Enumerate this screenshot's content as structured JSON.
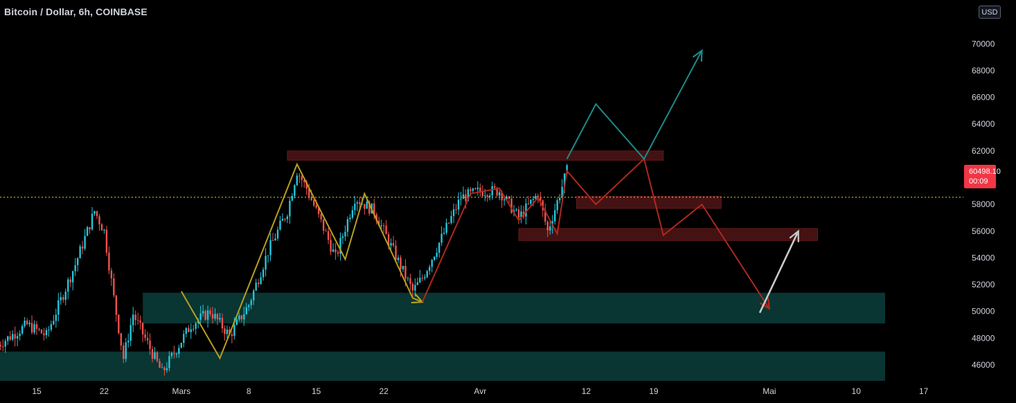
{
  "header": {
    "title": "Bitcoin / Dollar, 6h, COINBASE",
    "currency_button": "USD"
  },
  "price_label": {
    "value": "60498.10",
    "countdown": "00:09"
  },
  "colors": {
    "background": "#000000",
    "up_candle": "#26c6da",
    "down_candle": "#ef5350",
    "support_zone": "#0a3a36",
    "resistance_zone": "#4a1414",
    "yellow_line": "#b8a020",
    "red_projection": "#b0281e",
    "teal_projection": "#1d8a8a",
    "white_arrow": "#c9c9c9",
    "price_line": "#f5d142",
    "price_tag": "#f23645"
  },
  "chart_data": {
    "type": "candlestick",
    "symbol": "Bitcoin / Dollar",
    "interval": "6h",
    "exchange": "COINBASE",
    "ylim": [
      44800,
      72600
    ],
    "y_ticks": [
      46000,
      48000,
      50000,
      52000,
      54000,
      56000,
      58000,
      60000,
      62000,
      64000,
      66000,
      68000,
      70000
    ],
    "x_ticks": [
      "15",
      "22",
      "Mars",
      "8",
      "15",
      "22",
      "Avr",
      "12",
      "19",
      "Mai",
      "10",
      "17"
    ],
    "last_price": 60498.1,
    "price_path": [
      {
        "date": "Feb 11",
        "price": 47500
      },
      {
        "date": "Feb 14",
        "price": 49000
      },
      {
        "date": "Feb 16",
        "price": 48200
      },
      {
        "date": "Feb 19",
        "price": 53500
      },
      {
        "date": "Feb 21",
        "price": 57500
      },
      {
        "date": "Feb 22",
        "price": 56000
      },
      {
        "date": "Feb 23",
        "price": 51000
      },
      {
        "date": "Feb 24",
        "price": 46500
      },
      {
        "date": "Feb 25",
        "price": 49800
      },
      {
        "date": "Feb 28",
        "price": 45400
      },
      {
        "date": "Mar 2",
        "price": 49000
      },
      {
        "date": "Mar 4",
        "price": 50000
      },
      {
        "date": "Mar 6",
        "price": 48200
      },
      {
        "date": "Mar 8",
        "price": 50500
      },
      {
        "date": "Mar 10",
        "price": 54500
      },
      {
        "date": "Mar 12",
        "price": 57500
      },
      {
        "date": "Mar 13",
        "price": 60500
      },
      {
        "date": "Mar 14",
        "price": 59200
      },
      {
        "date": "Mar 16",
        "price": 55800
      },
      {
        "date": "Mar 17",
        "price": 54000
      },
      {
        "date": "Mar 19",
        "price": 58500
      },
      {
        "date": "Mar 21",
        "price": 57500
      },
      {
        "date": "Mar 23",
        "price": 54500
      },
      {
        "date": "Mar 25",
        "price": 51500
      },
      {
        "date": "Mar 26",
        "price": 52500
      },
      {
        "date": "Mar 28",
        "price": 55500
      },
      {
        "date": "Mar 30",
        "price": 58500
      },
      {
        "date": "Apr 1",
        "price": 59000
      },
      {
        "date": "Apr 3",
        "price": 59000
      },
      {
        "date": "Apr 5",
        "price": 57000
      },
      {
        "date": "Apr 7",
        "price": 58800
      },
      {
        "date": "Apr 8",
        "price": 56000
      },
      {
        "date": "Apr 9",
        "price": 58200
      },
      {
        "date": "Apr 10",
        "price": 60500
      }
    ],
    "zones": [
      {
        "kind": "resistance",
        "from": "Mar 12",
        "to": "Apr 20",
        "low": 61300,
        "high": 62000
      },
      {
        "kind": "resistance",
        "from": "Apr 11",
        "to": "Apr 26",
        "low": 57700,
        "high": 58600
      },
      {
        "kind": "resistance",
        "from": "Apr 5",
        "to": "May 6",
        "low": 55300,
        "high": 56200
      },
      {
        "kind": "support",
        "from": "Feb 26",
        "to": "May 13",
        "low": 49100,
        "high": 51400
      },
      {
        "kind": "support",
        "from": "Feb 8",
        "to": "May 13",
        "low": 44800,
        "high": 47000
      }
    ],
    "lines": [
      {
        "kind": "yellow",
        "points": [
          {
            "date": "Mar 1",
            "price": 51500
          },
          {
            "date": "Mar 5",
            "price": 46500
          },
          {
            "date": "Mar 13",
            "price": 61000
          },
          {
            "date": "Mar 18",
            "price": 53900
          },
          {
            "date": "Mar 20",
            "price": 58800
          },
          {
            "date": "Mar 25",
            "price": 51000
          },
          {
            "date": "Mar 26",
            "price": 50700
          }
        ]
      },
      {
        "kind": "red",
        "points": [
          {
            "date": "Mar 26",
            "price": 50700
          },
          {
            "date": "Mar 31",
            "price": 58800
          },
          {
            "date": "Apr 3",
            "price": 59200
          },
          {
            "date": "Apr 5",
            "price": 56800
          },
          {
            "date": "Apr 7",
            "price": 58500
          },
          {
            "date": "Apr 9",
            "price": 55800
          },
          {
            "date": "Apr 10",
            "price": 60500
          },
          {
            "date": "Apr 13",
            "price": 58000
          },
          {
            "date": "Apr 18",
            "price": 61400
          },
          {
            "date": "Apr 20",
            "price": 55700
          },
          {
            "date": "Apr 24",
            "price": 58000
          },
          {
            "date": "May 1",
            "price": 50200
          }
        ]
      },
      {
        "kind": "teal",
        "points": [
          {
            "date": "Apr 10",
            "price": 61400
          },
          {
            "date": "Apr 13",
            "price": 65500
          },
          {
            "date": "Apr 18",
            "price": 61400
          },
          {
            "date": "Apr 24",
            "price": 69500
          }
        ]
      },
      {
        "kind": "white",
        "points": [
          {
            "date": "Apr 30",
            "price": 49900
          },
          {
            "date": "May 4",
            "price": 56000
          }
        ]
      }
    ]
  }
}
